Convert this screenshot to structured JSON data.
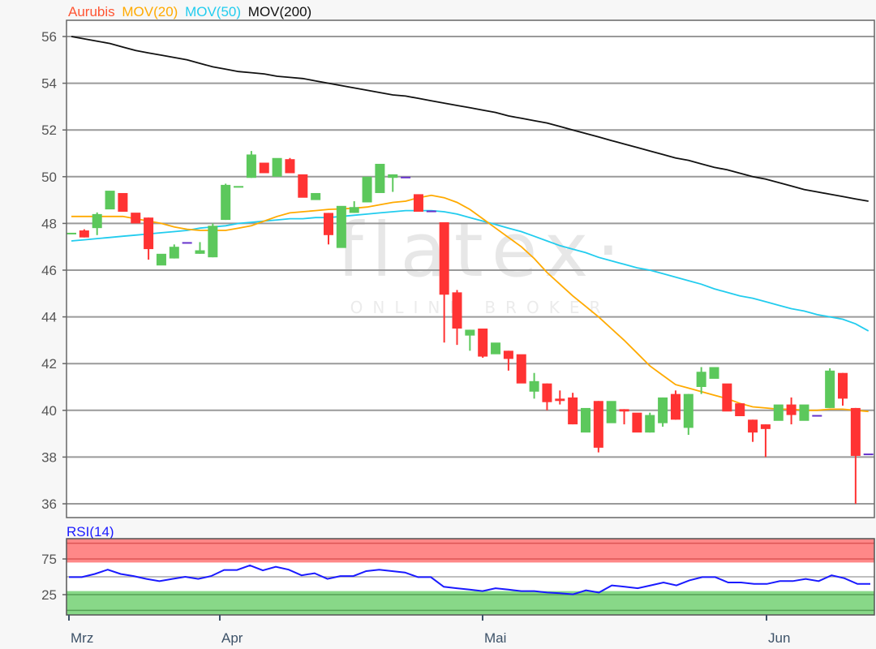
{
  "chart_data": {
    "type": "candlestick",
    "legend": [
      {
        "label": "Aurubis",
        "color": "#ff5533"
      },
      {
        "label": "MOV(20)",
        "color": "#ffaa00"
      },
      {
        "label": "MOV(50)",
        "color": "#22ccee"
      },
      {
        "label": "MOV(200)",
        "color": "#111111"
      }
    ],
    "legend_placement": "top-left",
    "ylim": [
      35.2,
      56.7
    ],
    "yticks": [
      36,
      38,
      40,
      42,
      44,
      46,
      48,
      50,
      52,
      54,
      56
    ],
    "grid": true,
    "xticks": [
      "Mrz",
      "Apr",
      "Mai",
      "Jun"
    ],
    "colors": {
      "up": "#5cc85c",
      "down": "#ff3333",
      "unchanged": "#6633cc"
    },
    "candles": [
      [
        47.55,
        47.6,
        47.55,
        47.6
      ],
      [
        47.7,
        47.75,
        47.4,
        47.4
      ],
      [
        47.8,
        48.47,
        47.5,
        48.4
      ],
      [
        48.6,
        49.4,
        48.6,
        49.4
      ],
      [
        49.3,
        49.3,
        48.5,
        48.5
      ],
      [
        48.46,
        48.46,
        48.0,
        48.0
      ],
      [
        48.25,
        48.25,
        46.45,
        46.9
      ],
      [
        46.2,
        46.7,
        46.2,
        46.7
      ],
      [
        46.5,
        47.1,
        46.5,
        47.0
      ],
      [
        47.2,
        47.2,
        47.2,
        47.2
      ],
      [
        46.7,
        47.2,
        46.7,
        46.85
      ],
      [
        46.55,
        48.0,
        46.55,
        47.9
      ],
      [
        48.15,
        49.7,
        48.15,
        49.65
      ],
      [
        49.55,
        49.6,
        49.55,
        49.6
      ],
      [
        49.95,
        51.1,
        49.95,
        50.95
      ],
      [
        50.6,
        50.6,
        50.15,
        50.15
      ],
      [
        50.0,
        50.8,
        50.0,
        50.8
      ],
      [
        50.75,
        50.8,
        50.15,
        50.15
      ],
      [
        50.1,
        50.1,
        49.1,
        49.1
      ],
      [
        49.0,
        49.3,
        49.0,
        49.3
      ],
      [
        48.45,
        48.45,
        47.1,
        47.5
      ],
      [
        46.95,
        48.75,
        46.95,
        48.75
      ],
      [
        48.45,
        48.95,
        48.45,
        48.7
      ],
      [
        48.9,
        50.0,
        48.9,
        50.0
      ],
      [
        49.3,
        50.55,
        49.3,
        50.55
      ],
      [
        49.95,
        50.1,
        49.35,
        50.1
      ],
      [
        50.0,
        50.0,
        50.0,
        50.0
      ],
      [
        49.25,
        49.25,
        48.5,
        48.5
      ],
      [
        48.55,
        48.55,
        48.55,
        48.55
      ],
      [
        48.05,
        48.05,
        42.9,
        44.95
      ],
      [
        45.05,
        45.15,
        42.8,
        43.5
      ],
      [
        43.2,
        43.45,
        42.55,
        43.45
      ],
      [
        43.5,
        43.5,
        42.25,
        42.3
      ],
      [
        42.4,
        42.9,
        42.4,
        42.9
      ],
      [
        42.55,
        42.55,
        41.7,
        42.2
      ],
      [
        42.4,
        42.4,
        41.15,
        41.15
      ],
      [
        40.8,
        41.6,
        40.5,
        41.25
      ],
      [
        41.15,
        41.15,
        40.0,
        40.35
      ],
      [
        40.5,
        40.85,
        40.25,
        40.4
      ],
      [
        40.55,
        40.75,
        39.4,
        39.4
      ],
      [
        39.05,
        40.1,
        39.05,
        40.1
      ],
      [
        40.4,
        40.4,
        38.2,
        38.4
      ],
      [
        39.45,
        40.4,
        39.45,
        40.4
      ],
      [
        40.05,
        40.05,
        39.4,
        39.95
      ],
      [
        39.9,
        39.9,
        39.05,
        39.05
      ],
      [
        39.05,
        39.9,
        39.05,
        39.8
      ],
      [
        39.45,
        40.55,
        39.3,
        40.55
      ],
      [
        40.7,
        40.85,
        39.6,
        39.6
      ],
      [
        39.25,
        40.7,
        38.95,
        40.7
      ],
      [
        41.0,
        41.85,
        40.7,
        41.65
      ],
      [
        41.35,
        41.85,
        41.35,
        41.85
      ],
      [
        41.15,
        41.15,
        39.95,
        39.95
      ],
      [
        40.3,
        40.3,
        39.75,
        39.75
      ],
      [
        39.6,
        39.6,
        38.65,
        39.05
      ],
      [
        39.4,
        39.4,
        38.0,
        39.2
      ],
      [
        39.55,
        40.25,
        39.55,
        40.25
      ],
      [
        40.25,
        40.55,
        39.4,
        39.8
      ],
      [
        39.55,
        40.25,
        39.55,
        40.25
      ],
      [
        39.8,
        39.8,
        39.8,
        39.8
      ],
      [
        40.1,
        41.8,
        40.1,
        41.7
      ],
      [
        41.6,
        41.6,
        40.2,
        40.5
      ],
      [
        40.1,
        40.1,
        36.0,
        38.05
      ],
      [
        38.15,
        38.15,
        38.15,
        38.15
      ]
    ],
    "mov20": [
      48.3,
      48.3,
      48.3,
      48.3,
      48.3,
      48.2,
      48.1,
      48.0,
      47.85,
      47.75,
      47.7,
      47.7,
      47.7,
      47.8,
      47.9,
      48.1,
      48.3,
      48.45,
      48.5,
      48.55,
      48.6,
      48.62,
      48.65,
      48.7,
      48.8,
      48.9,
      48.95,
      49.1,
      49.2,
      49.1,
      48.9,
      48.6,
      48.2,
      47.8,
      47.4,
      47.0,
      46.5,
      45.9,
      45.4,
      44.9,
      44.45,
      44.0,
      43.5,
      43.0,
      42.45,
      41.9,
      41.5,
      41.1,
      40.95,
      40.8,
      40.65,
      40.5,
      40.3,
      40.15,
      40.1,
      40.05,
      40.05,
      40.0,
      40.0,
      40.05,
      40.05,
      40.0,
      39.95
    ],
    "mov50": [
      47.25,
      47.3,
      47.35,
      47.4,
      47.45,
      47.5,
      47.55,
      47.6,
      47.65,
      47.7,
      47.8,
      47.85,
      47.9,
      48.0,
      48.05,
      48.1,
      48.15,
      48.2,
      48.2,
      48.25,
      48.25,
      48.3,
      48.35,
      48.4,
      48.45,
      48.5,
      48.55,
      48.55,
      48.55,
      48.5,
      48.4,
      48.25,
      48.1,
      47.95,
      47.8,
      47.65,
      47.45,
      47.25,
      47.05,
      46.9,
      46.75,
      46.55,
      46.4,
      46.25,
      46.1,
      46.0,
      45.85,
      45.7,
      45.55,
      45.4,
      45.2,
      45.05,
      44.9,
      44.8,
      44.65,
      44.5,
      44.35,
      44.25,
      44.1,
      44.0,
      43.9,
      43.7,
      43.4
    ],
    "mov200": [
      56.0,
      55.9,
      55.8,
      55.7,
      55.55,
      55.4,
      55.3,
      55.2,
      55.1,
      55.0,
      54.85,
      54.7,
      54.6,
      54.5,
      54.45,
      54.4,
      54.3,
      54.25,
      54.2,
      54.1,
      54.0,
      53.9,
      53.8,
      53.7,
      53.6,
      53.5,
      53.45,
      53.35,
      53.25,
      53.15,
      53.05,
      52.95,
      52.85,
      52.75,
      52.6,
      52.5,
      52.4,
      52.3,
      52.15,
      52.0,
      51.85,
      51.7,
      51.55,
      51.4,
      51.25,
      51.1,
      50.95,
      50.8,
      50.7,
      50.55,
      50.4,
      50.3,
      50.15,
      50.0,
      49.9,
      49.75,
      49.6,
      49.45,
      49.35,
      49.25,
      49.15,
      49.05,
      48.95
    ],
    "rsi": {
      "label": "RSI(14)",
      "color": "#1a1aff",
      "ylim": [
        0,
        100
      ],
      "yticks": [
        75,
        25
      ],
      "overbought_zone": [
        70,
        100
      ],
      "oversold_zone": [
        0,
        30
      ],
      "values": [
        49.5,
        49.5,
        54,
        60,
        54,
        51,
        47,
        44,
        47,
        50,
        47,
        51,
        59.5,
        59.5,
        66,
        59,
        64,
        60,
        52,
        55,
        47,
        51,
        51,
        58,
        60,
        58,
        56,
        49.5,
        49.5,
        36,
        34,
        32,
        30,
        34,
        32,
        30,
        30,
        28,
        27,
        25.5,
        31,
        28,
        38,
        36,
        34,
        38,
        42,
        38,
        45,
        49.5,
        49.5,
        42,
        42,
        40,
        40,
        44,
        44,
        47,
        44,
        52,
        48,
        40,
        40
      ]
    }
  },
  "watermark": {
    "logo": "flatex",
    "tagline": "ONLINE BROKER"
  }
}
